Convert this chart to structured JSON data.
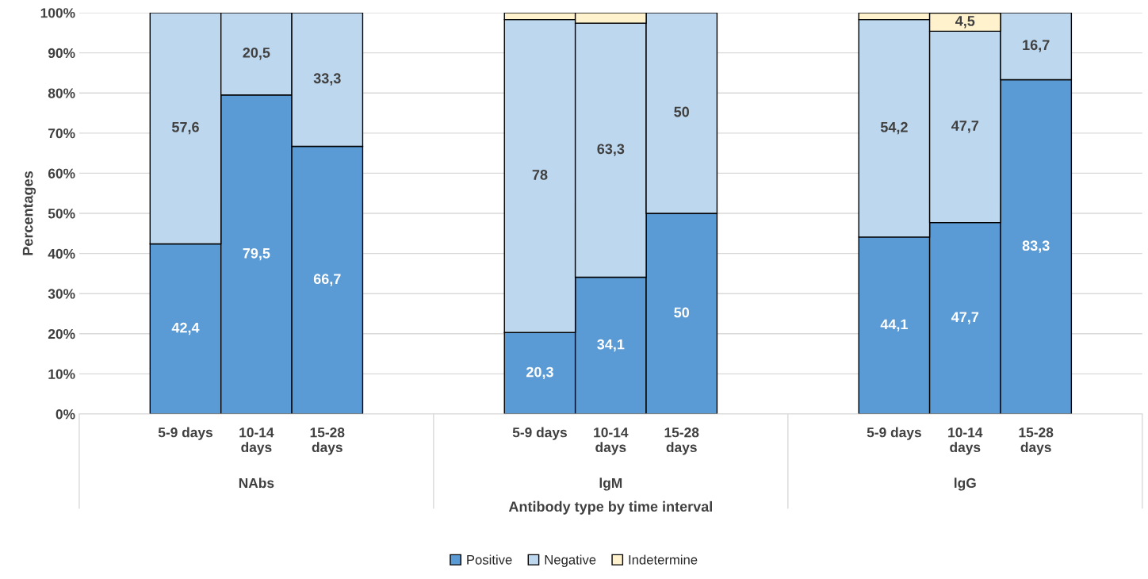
{
  "chart_data": {
    "type": "bar",
    "stacked": true,
    "xlabel": "Antibody type by time interval",
    "ylabel": "Percentages",
    "categories": [
      null,
      "5-9 days",
      "10-14\ndays",
      "15-28\ndays",
      null,
      null,
      "5-9 days",
      "10-14\ndays",
      "15-28\ndays",
      null,
      null,
      "5-9 days",
      "10-14\ndays",
      "15-28\ndays",
      null
    ],
    "series": [
      {
        "name": "Positive",
        "color": "#5b9bd5",
        "values": [
          null,
          42.4,
          79.5,
          66.7,
          null,
          null,
          20.3,
          34.1,
          50,
          null,
          null,
          44.1,
          47.7,
          83.3,
          null
        ],
        "value_labels": [
          null,
          "42,4",
          "79,5",
          "66,7",
          null,
          null,
          "20,3",
          "34,1",
          "50",
          null,
          null,
          "44,1",
          "47,7",
          "83,3",
          null
        ]
      },
      {
        "name": "Negative",
        "color": "#bdd7ee",
        "values": [
          null,
          57.6,
          20.5,
          33.3,
          null,
          null,
          78,
          63.3,
          50,
          null,
          null,
          54.2,
          47.7,
          16.7,
          null
        ],
        "value_labels": [
          null,
          "57,6",
          "20,5",
          "33,3",
          null,
          null,
          "78",
          "63,3",
          "50",
          null,
          null,
          "54,2",
          "47,7",
          "16,7",
          null
        ]
      },
      {
        "name": "Indetermine",
        "color": "#fff2cc",
        "values": [
          null,
          null,
          null,
          null,
          null,
          null,
          1.7,
          2.6,
          null,
          null,
          null,
          1.7,
          4.5,
          null,
          null
        ],
        "value_labels": [
          null,
          null,
          null,
          null,
          null,
          null,
          null,
          null,
          null,
          null,
          null,
          null,
          "4,5",
          null,
          null
        ]
      }
    ],
    "annotations": [
      "NAbs",
      "lgM",
      "lgG"
    ],
    "ylim": [
      0,
      100
    ],
    "yticks": [
      {
        "value": 0,
        "label": "0%"
      },
      {
        "value": 10,
        "label": "10%"
      },
      {
        "value": 20,
        "label": "20%"
      },
      {
        "value": 30,
        "label": "30%"
      },
      {
        "value": 40,
        "label": "40%"
      },
      {
        "value": 50,
        "label": "50%"
      },
      {
        "value": 60,
        "label": "60%"
      },
      {
        "value": 70,
        "label": "70%"
      },
      {
        "value": 80,
        "label": "80%"
      },
      {
        "value": 90,
        "label": "90%"
      },
      {
        "value": 100,
        "label": "100%"
      }
    ],
    "grid": "y",
    "legend": "bottom"
  }
}
